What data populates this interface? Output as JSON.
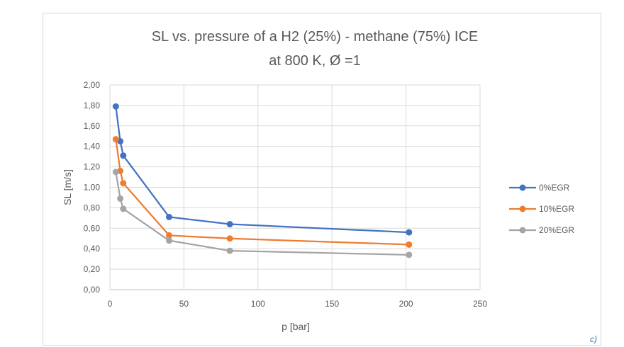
{
  "chart_data": {
    "type": "scatter",
    "title": "SL vs. pressure of a H2 (25%) - methane (75%) ICE",
    "subtitle": "at 800 K, Ø =1",
    "xlabel": "p [bar]",
    "ylabel": "SL [m/s]",
    "xlim": [
      0,
      250
    ],
    "ylim": [
      0,
      2
    ],
    "xticks": [
      0,
      50,
      100,
      150,
      200,
      250
    ],
    "yticks": [
      "0,00",
      "0,20",
      "0,40",
      "0,60",
      "0,80",
      "1,00",
      "1,20",
      "1,40",
      "1,60",
      "1,80",
      "2,00"
    ],
    "grid": true,
    "legend_position": "right",
    "series": [
      {
        "name": "0%EGR",
        "color": "#4472c4",
        "x": [
          4,
          7,
          9,
          40,
          81,
          202
        ],
        "y": [
          1.79,
          1.45,
          1.31,
          0.71,
          0.64,
          0.56
        ]
      },
      {
        "name": "10%EGR",
        "color": "#ed7d31",
        "x": [
          4,
          7,
          9,
          40,
          81,
          202
        ],
        "y": [
          1.47,
          1.16,
          1.04,
          0.53,
          0.5,
          0.44
        ]
      },
      {
        "name": "20%EGR",
        "color": "#a5a5a5",
        "x": [
          4,
          7,
          9,
          40,
          81,
          202
        ],
        "y": [
          1.15,
          0.89,
          0.79,
          0.48,
          0.38,
          0.34
        ]
      }
    ]
  },
  "panel_label": "c)"
}
